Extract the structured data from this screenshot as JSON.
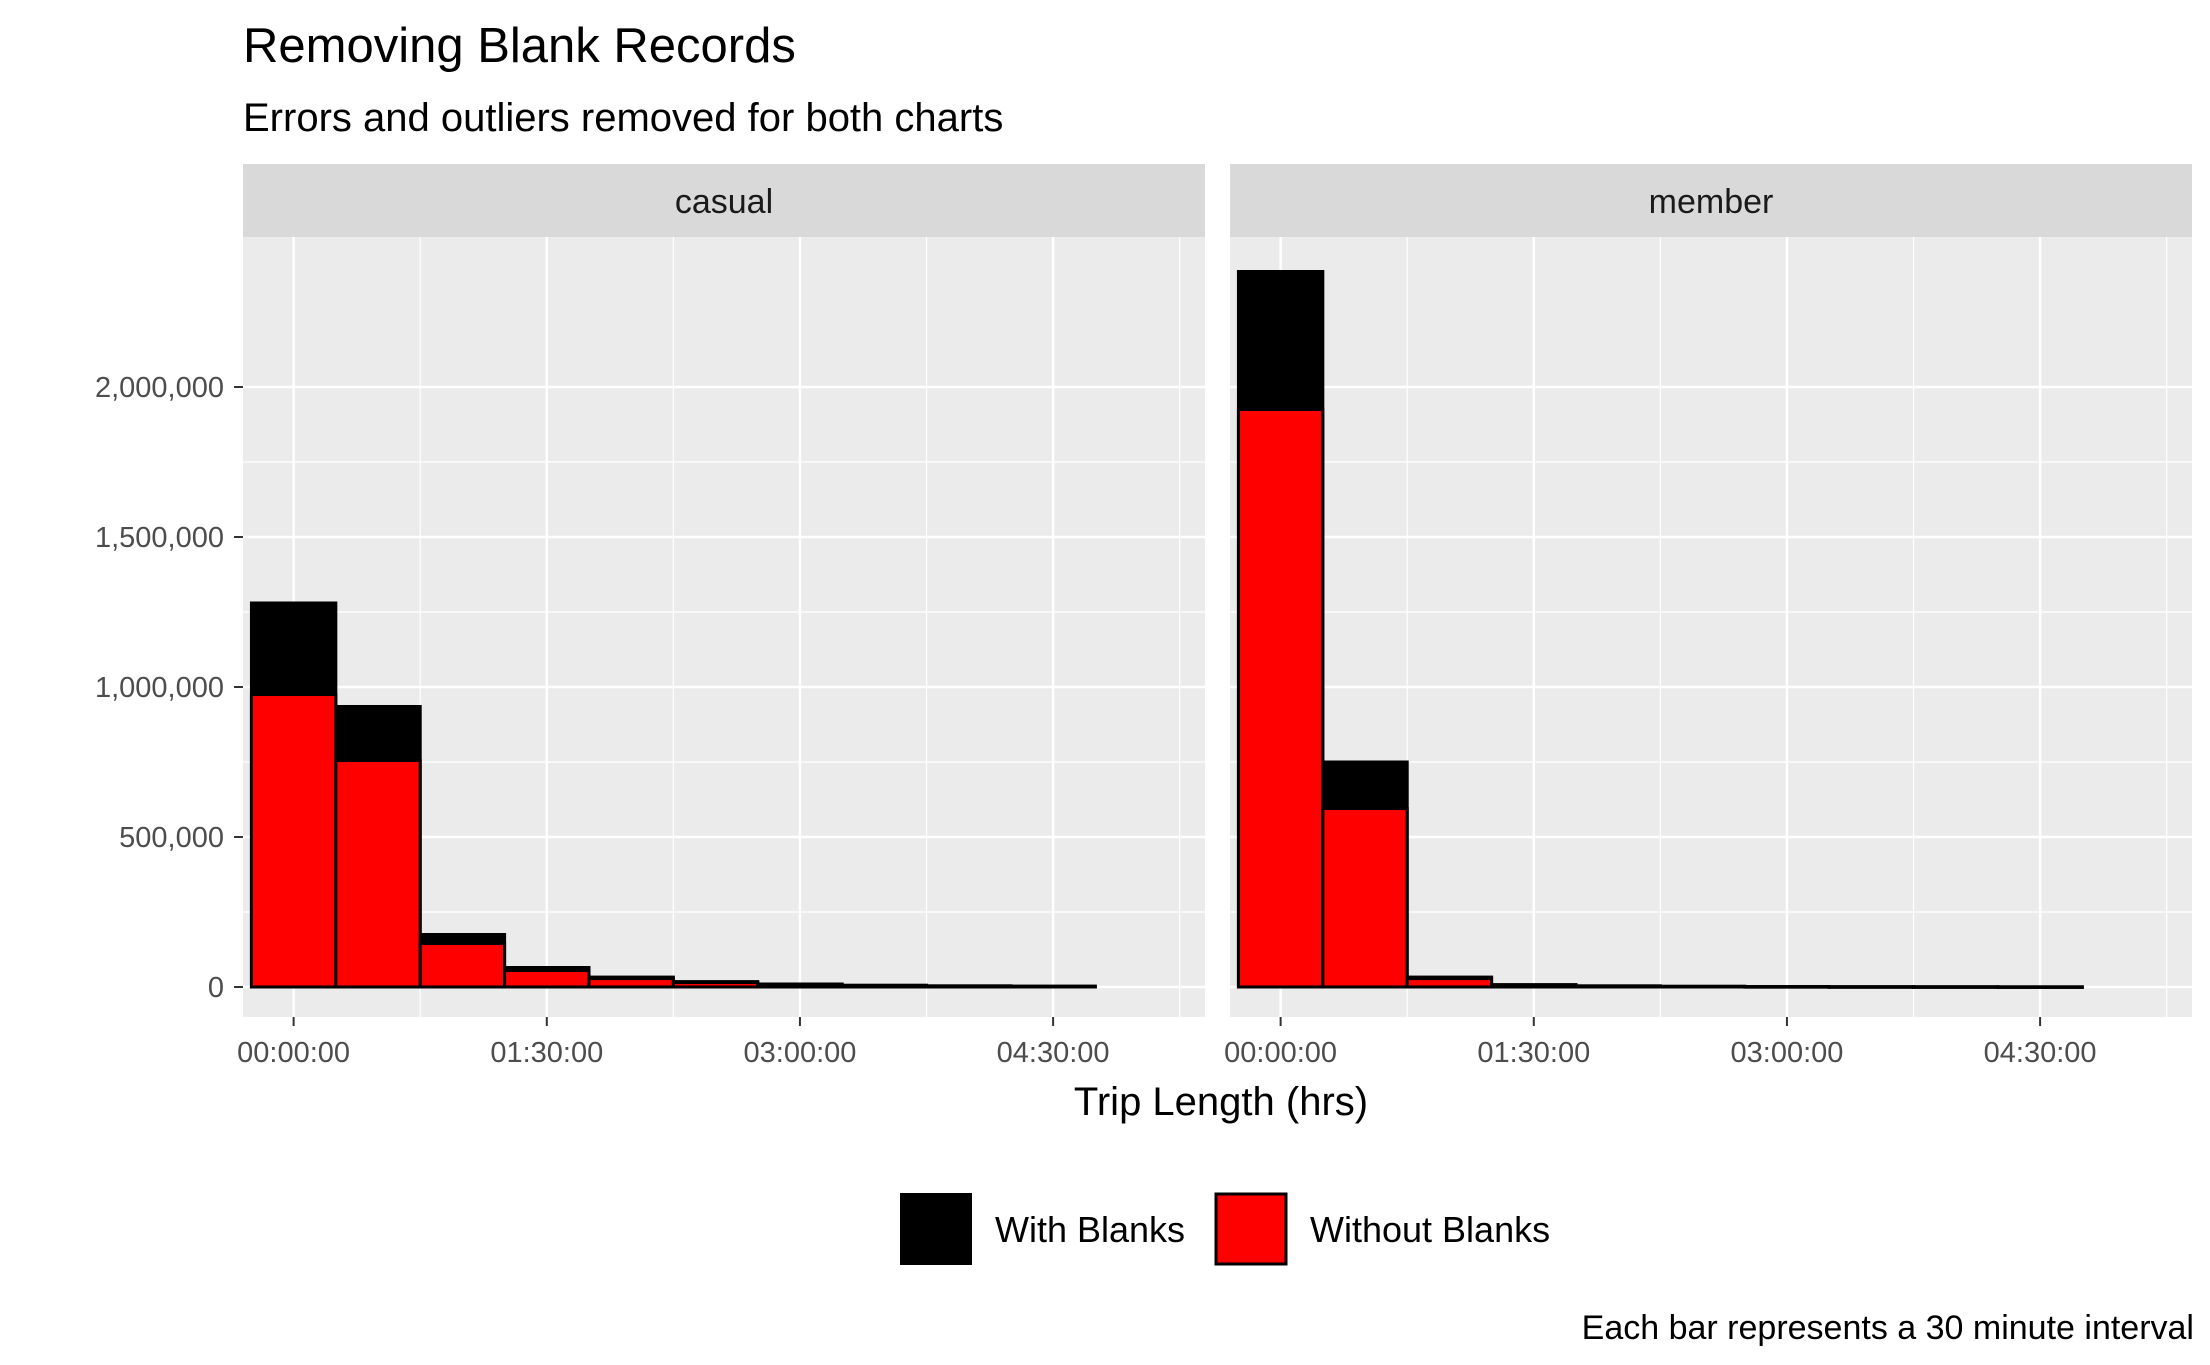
{
  "title": "Removing Blank Records",
  "subtitle": "Errors and outliers removed for both charts",
  "caption": "Each bar represents a 30 minute interval",
  "colors": {
    "with_blanks": "#000000",
    "without_blanks": "#ff0000",
    "panel_bg": "#ebebeb",
    "strip_bg": "#d9d9d9",
    "grid": "#ffffff"
  },
  "chart_data": {
    "type": "bar",
    "xlabel": "Trip Length (hrs)",
    "ylabel": "",
    "x_ticks": [
      "00:00:00",
      "01:30:00",
      "03:00:00",
      "04:30:00"
    ],
    "x_tick_hours": [
      0,
      1.5,
      3,
      4.5
    ],
    "xlim_hours": [
      -0.3,
      5.4
    ],
    "y_ticks": [
      0,
      500000,
      1000000,
      1500000,
      2000000
    ],
    "y_tick_labels": [
      "0",
      "500,000",
      "1,000,000",
      "1,500,000",
      "2,000,000"
    ],
    "ylim": [
      -100000,
      2500000
    ],
    "bin_width_hours": 0.5,
    "bin_centers_hours": [
      0,
      0.5,
      1,
      1.5,
      2,
      2.5,
      3,
      3.5,
      4,
      4.5
    ],
    "legend": {
      "position": "bottom",
      "entries": [
        "With Blanks",
        "Without Blanks"
      ]
    },
    "grid": true,
    "panels": [
      {
        "facet": "casual",
        "series": [
          {
            "name": "With Blanks",
            "values": [
              1280000,
              935000,
              175000,
              65000,
              33000,
              18000,
              10000,
              6000,
              4000,
              3000
            ]
          },
          {
            "name": "Without Blanks",
            "values": [
              975000,
              755000,
              145000,
              55000,
              28000,
              15000,
              8000,
              5000,
              3000,
              2000
            ]
          }
        ]
      },
      {
        "facet": "member",
        "series": [
          {
            "name": "With Blanks",
            "values": [
              2385000,
              750000,
              33000,
              8000,
              4000,
              2500,
              1500,
              1000,
              800,
              500
            ]
          },
          {
            "name": "Without Blanks",
            "values": [
              1925000,
              595000,
              28000,
              6000,
              3000,
              2000,
              1200,
              800,
              600,
              400
            ]
          }
        ]
      }
    ]
  }
}
